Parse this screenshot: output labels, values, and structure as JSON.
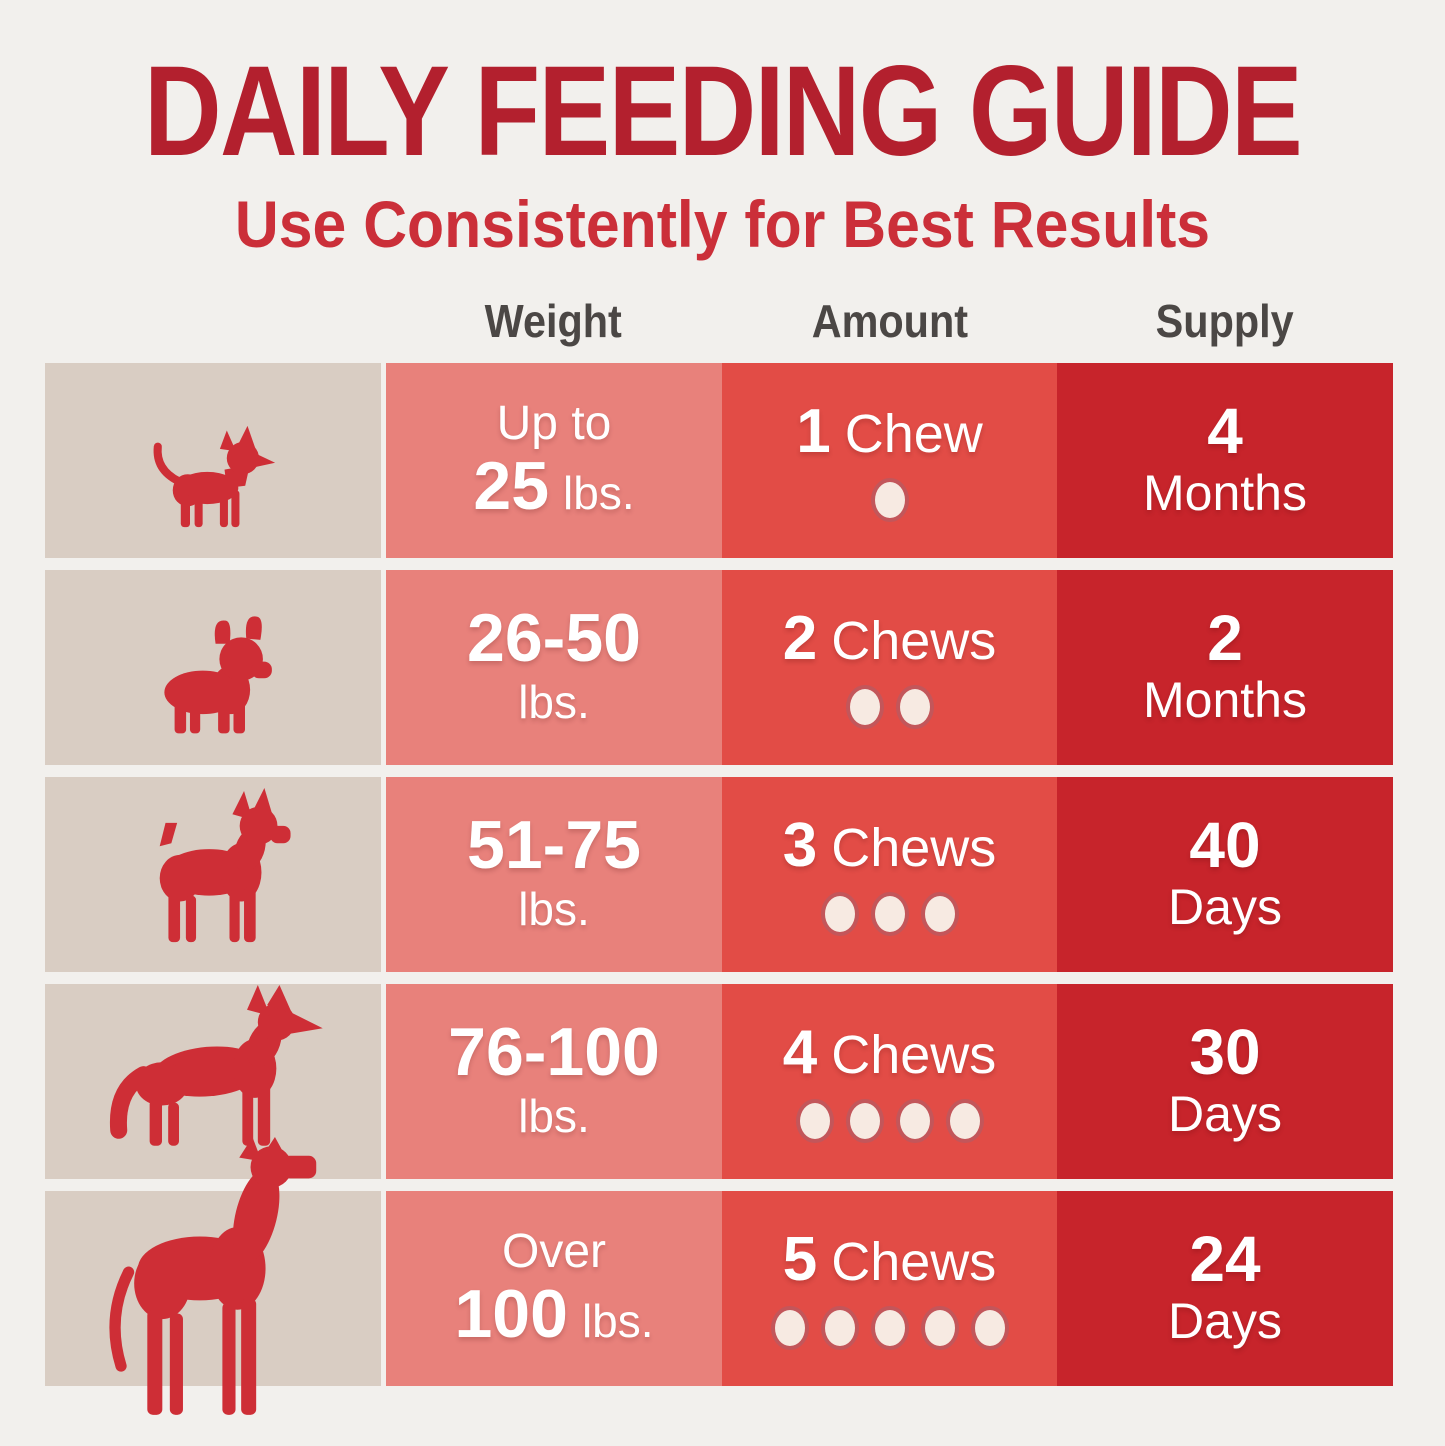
{
  "title": "DAILY FEEDING GUIDE",
  "subtitle": "Use Consistently for Best Results",
  "headers": {
    "weight": "Weight",
    "amount": "Amount",
    "supply": "Supply"
  },
  "colors": {
    "background": "#F2F0ED",
    "title_text": "#B3202E",
    "subtitle_text": "#CB2F39",
    "header_text": "#4B4745",
    "dog_cell": "#D9CDC3",
    "weight_cell": "#E8817B",
    "amount_cell": "#E24C46",
    "supply_cell": "#C7242B",
    "dog_silhouette": "#CE2E36",
    "chew_dot": "#F7EAE2",
    "cell_text": "#FFFFFF"
  },
  "rows": [
    {
      "dog": "chihuahua",
      "weight": {
        "pre": "Up to",
        "num": "25",
        "unit": "lbs."
      },
      "amount": {
        "num": "1",
        "label": "Chew",
        "chews": 1
      },
      "supply": {
        "num": "4",
        "unit": "Months"
      }
    },
    {
      "dog": "french-bulldog",
      "weight": {
        "pre": "",
        "num": "26-50",
        "unit": "lbs."
      },
      "amount": {
        "num": "2",
        "label": "Chews",
        "chews": 2
      },
      "supply": {
        "num": "2",
        "unit": "Months"
      }
    },
    {
      "dog": "boxer",
      "weight": {
        "pre": "",
        "num": "51-75",
        "unit": "lbs."
      },
      "amount": {
        "num": "3",
        "label": "Chews",
        "chews": 3
      },
      "supply": {
        "num": "40",
        "unit": "Days"
      }
    },
    {
      "dog": "german-shepherd",
      "weight": {
        "pre": "",
        "num": "76-100",
        "unit": "lbs."
      },
      "amount": {
        "num": "4",
        "label": "Chews",
        "chews": 4
      },
      "supply": {
        "num": "30",
        "unit": "Days"
      }
    },
    {
      "dog": "great-dane",
      "weight": {
        "pre": "Over",
        "num": "100",
        "unit": "lbs."
      },
      "amount": {
        "num": "5",
        "label": "Chews",
        "chews": 5
      },
      "supply": {
        "num": "24",
        "unit": "Days"
      }
    }
  ]
}
